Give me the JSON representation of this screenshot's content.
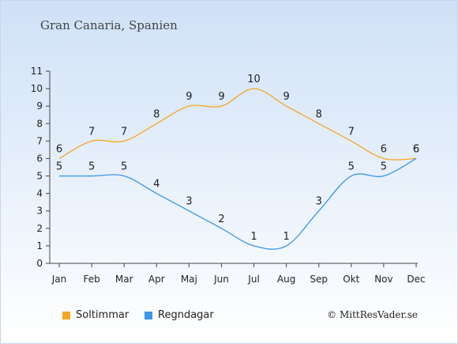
{
  "title": "Gran Canaria, Spanien",
  "credit": "© MittResVader.se",
  "chart_data": {
    "type": "line",
    "categories": [
      "Jan",
      "Feb",
      "Mar",
      "Apr",
      "Maj",
      "Jun",
      "Jul",
      "Aug",
      "Sep",
      "Okt",
      "Nov",
      "Dec"
    ],
    "ylim": [
      0,
      11
    ],
    "yticks": [
      "0",
      "1",
      "2",
      "3",
      "4",
      "5",
      "6",
      "7",
      "8",
      "9",
      "10",
      "11"
    ],
    "grid": false,
    "legend_position": "bottom-left",
    "series": [
      {
        "name": "Soltimmar",
        "color": "#f5a623",
        "values": [
          6,
          7,
          7,
          8,
          9,
          9,
          10,
          9,
          8,
          7,
          6,
          6
        ]
      },
      {
        "name": "Regndagar",
        "color": "#3b96e8",
        "values": [
          5,
          5,
          5,
          4,
          3,
          2,
          1,
          1,
          3,
          5,
          5,
          6
        ]
      }
    ]
  }
}
